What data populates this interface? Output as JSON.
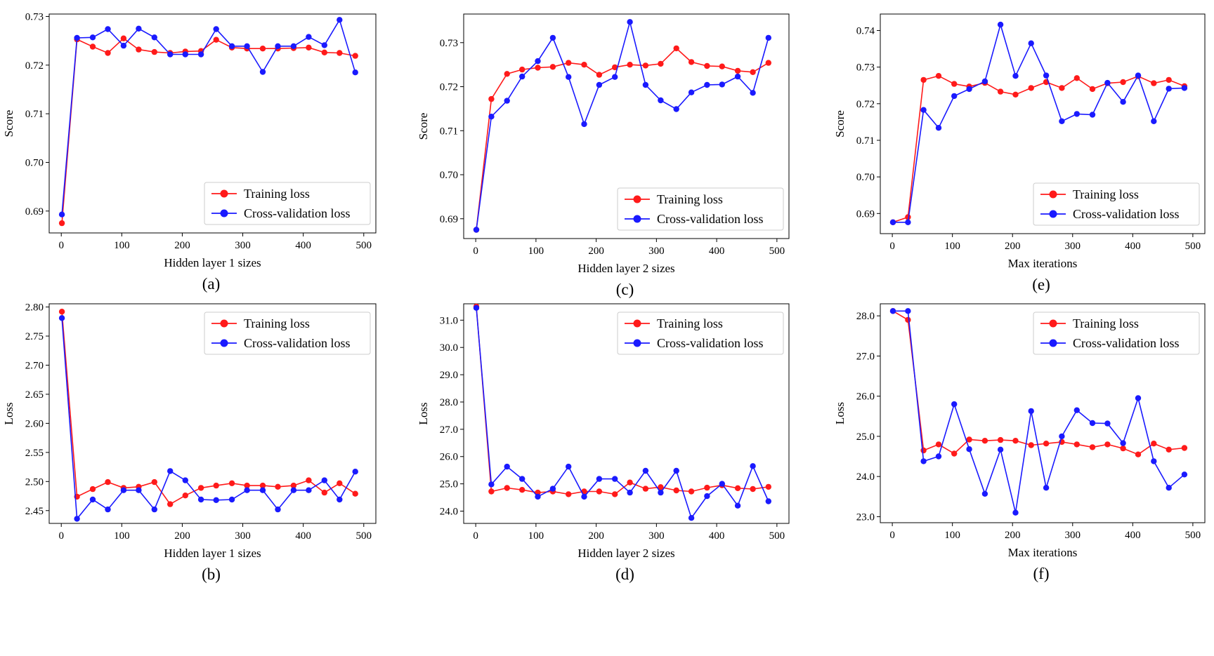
{
  "figure": {
    "legend_labels": [
      "Training loss",
      "Cross-validation loss"
    ]
  },
  "colors": {
    "training": "#ff1a1a",
    "cv": "#1a1aff",
    "axis": "#000000",
    "legend_border": "#cccccc"
  },
  "chart_data": [
    {
      "id": "a",
      "type": "line",
      "caption": "(a)",
      "xlabel": "Hidden layer 1 sizes",
      "ylabel": "Score",
      "xlim": [
        -20,
        520
      ],
      "ylim": [
        0.6855,
        0.7305
      ],
      "xticks": [
        0,
        100,
        200,
        300,
        400,
        500
      ],
      "xtick_labels": [
        "0",
        "100",
        "200",
        "300",
        "400",
        "500"
      ],
      "yticks": [
        0.69,
        0.7,
        0.71,
        0.72,
        0.73
      ],
      "ytick_labels": [
        "0.69",
        "0.70",
        "0.71",
        "0.72",
        "0.73"
      ],
      "legend": "bottom-right",
      "x": [
        1,
        26,
        52,
        77,
        103,
        128,
        154,
        180,
        205,
        231,
        256,
        282,
        307,
        333,
        358,
        384,
        409,
        435,
        460,
        486
      ],
      "series": [
        {
          "name": "Training loss",
          "values": [
            0.6875,
            0.7253,
            0.7238,
            0.7225,
            0.7255,
            0.7232,
            0.7227,
            0.7225,
            0.7228,
            0.7229,
            0.7252,
            0.7236,
            0.7234,
            0.7234,
            0.7234,
            0.7235,
            0.7236,
            0.7226,
            0.7225,
            0.7219
          ]
        },
        {
          "name": "Cross-validation loss",
          "values": [
            0.6893,
            0.7256,
            0.7257,
            0.7274,
            0.724,
            0.7275,
            0.7257,
            0.7222,
            0.7222,
            0.7222,
            0.7274,
            0.7239,
            0.7239,
            0.7186,
            0.7239,
            0.7239,
            0.7258,
            0.7241,
            0.7293,
            0.7185
          ]
        }
      ]
    },
    {
      "id": "c",
      "type": "line",
      "caption": "(c)",
      "xlabel": "Hidden layer 2 sizes",
      "ylabel": "Score",
      "xlim": [
        -20,
        520
      ],
      "ylim": [
        0.6855,
        0.7365
      ],
      "xticks": [
        0,
        100,
        200,
        300,
        400,
        500
      ],
      "xtick_labels": [
        "0",
        "100",
        "200",
        "300",
        "400",
        "500"
      ],
      "yticks": [
        0.69,
        0.7,
        0.71,
        0.72,
        0.73
      ],
      "ytick_labels": [
        "0.69",
        "0.70",
        "0.71",
        "0.72",
        "0.73"
      ],
      "legend": "bottom-right",
      "x": [
        1,
        26,
        52,
        77,
        103,
        128,
        154,
        180,
        205,
        231,
        256,
        282,
        307,
        333,
        358,
        384,
        409,
        435,
        460,
        486
      ],
      "series": [
        {
          "name": "Training loss",
          "values": [
            0.6875,
            0.7172,
            0.7229,
            0.7239,
            0.7243,
            0.7245,
            0.7254,
            0.725,
            0.7227,
            0.7244,
            0.725,
            0.7248,
            0.7252,
            0.7287,
            0.7256,
            0.7247,
            0.7246,
            0.7236,
            0.7233,
            0.7254
          ]
        },
        {
          "name": "Cross-validation loss",
          "values": [
            0.6875,
            0.7132,
            0.7168,
            0.7223,
            0.7258,
            0.7311,
            0.7222,
            0.7115,
            0.7204,
            0.7222,
            0.7347,
            0.7204,
            0.7169,
            0.7149,
            0.7187,
            0.7204,
            0.7205,
            0.7223,
            0.7186,
            0.7311
          ]
        }
      ]
    },
    {
      "id": "e",
      "type": "line",
      "caption": "(e)",
      "xlabel": "Max iterations",
      "ylabel": "Score",
      "xlim": [
        -20,
        520
      ],
      "ylim": [
        0.6845,
        0.7445
      ],
      "xticks": [
        0,
        100,
        200,
        300,
        400,
        500
      ],
      "xtick_labels": [
        "0",
        "100",
        "200",
        "300",
        "400",
        "500"
      ],
      "yticks": [
        0.69,
        0.7,
        0.71,
        0.72,
        0.73,
        0.74
      ],
      "ytick_labels": [
        "0.69",
        "0.70",
        "0.71",
        "0.72",
        "0.73",
        "0.74"
      ],
      "legend": "bottom-right",
      "x": [
        1,
        26,
        52,
        77,
        103,
        128,
        154,
        180,
        205,
        231,
        256,
        282,
        307,
        333,
        358,
        384,
        409,
        435,
        460,
        486
      ],
      "series": [
        {
          "name": "Training loss",
          "values": [
            0.6876,
            0.689,
            0.7265,
            0.7276,
            0.7254,
            0.7247,
            0.7257,
            0.7233,
            0.7225,
            0.7243,
            0.7259,
            0.7243,
            0.727,
            0.724,
            0.7256,
            0.7259,
            0.7275,
            0.7256,
            0.7265,
            0.7248
          ]
        },
        {
          "name": "Cross-validation loss",
          "values": [
            0.6876,
            0.6876,
            0.7183,
            0.7134,
            0.7221,
            0.724,
            0.7261,
            0.7416,
            0.7276,
            0.7365,
            0.7277,
            0.7152,
            0.7172,
            0.717,
            0.7257,
            0.7205,
            0.7277,
            0.7152,
            0.7241,
            0.7243
          ]
        }
      ]
    },
    {
      "id": "b",
      "type": "line",
      "caption": "(b)",
      "xlabel": "Hidden layer 1 sizes",
      "ylabel": "Loss",
      "xlim": [
        -20,
        520
      ],
      "ylim": [
        2.428,
        2.8055
      ],
      "xticks": [
        0,
        100,
        200,
        300,
        400,
        500
      ],
      "xtick_labels": [
        "0",
        "100",
        "200",
        "300",
        "400",
        "500"
      ],
      "yticks": [
        2.45,
        2.5,
        2.55,
        2.6,
        2.65,
        2.7,
        2.75,
        2.8
      ],
      "ytick_labels": [
        "2.45",
        "2.50",
        "2.55",
        "2.60",
        "2.65",
        "2.70",
        "2.75",
        "2.80"
      ],
      "legend": "top-right",
      "x": [
        1,
        26,
        52,
        77,
        103,
        128,
        154,
        180,
        205,
        231,
        256,
        282,
        307,
        333,
        358,
        384,
        409,
        435,
        460,
        486
      ],
      "series": [
        {
          "name": "Training loss",
          "values": [
            2.792,
            2.474,
            2.487,
            2.499,
            2.489,
            2.491,
            2.499,
            2.461,
            2.476,
            2.489,
            2.493,
            2.497,
            2.493,
            2.493,
            2.491,
            2.493,
            2.502,
            2.481,
            2.497,
            2.479
          ]
        },
        {
          "name": "Cross-validation loss",
          "values": [
            2.781,
            2.436,
            2.469,
            2.452,
            2.485,
            2.485,
            2.452,
            2.518,
            2.502,
            2.469,
            2.468,
            2.469,
            2.485,
            2.485,
            2.452,
            2.485,
            2.485,
            2.502,
            2.469,
            2.517
          ]
        }
      ]
    },
    {
      "id": "d",
      "type": "line",
      "caption": "(d)",
      "xlabel": "Hidden layer 2 sizes",
      "ylabel": "Loss",
      "xlim": [
        -20,
        520
      ],
      "ylim": [
        23.55,
        31.6
      ],
      "xticks": [
        0,
        100,
        200,
        300,
        400,
        500
      ],
      "xtick_labels": [
        "0",
        "100",
        "200",
        "300",
        "400",
        "500"
      ],
      "yticks": [
        24,
        25,
        26,
        27,
        28,
        29,
        30,
        31
      ],
      "ytick_labels": [
        "24.0",
        "25.0",
        "26.0",
        "27.0",
        "28.0",
        "29.0",
        "30.0",
        "31.0"
      ],
      "ytick_display": [
        "24.0",
        "25.0",
        "26.0",
        "27.0",
        "28.0",
        "29.0",
        "30.0",
        "31.0"
      ],
      "legend": "top-right",
      "x": [
        1,
        26,
        52,
        77,
        103,
        128,
        154,
        180,
        205,
        231,
        256,
        282,
        307,
        333,
        358,
        384,
        409,
        435,
        460,
        486
      ],
      "series": [
        {
          "name": "Training loss",
          "values": [
            31.5,
            24.72,
            24.85,
            24.78,
            24.68,
            24.72,
            24.62,
            24.72,
            24.72,
            24.62,
            25.05,
            24.82,
            24.88,
            24.76,
            24.72,
            24.86,
            24.95,
            24.84,
            24.81,
            24.89
          ]
        },
        {
          "name": "Cross-validation loss",
          "values": [
            31.45,
            24.98,
            25.63,
            25.18,
            24.53,
            24.82,
            25.63,
            24.53,
            25.18,
            25.18,
            24.68,
            25.48,
            24.68,
            25.48,
            23.75,
            24.55,
            25.0,
            24.2,
            25.65,
            24.36
          ]
        }
      ]
    },
    {
      "id": "f",
      "type": "line",
      "caption": "(f)",
      "xlabel": "Max iterations",
      "ylabel": "Loss",
      "xlim": [
        -20,
        520
      ],
      "ylim": [
        22.85,
        28.3
      ],
      "xticks": [
        0,
        100,
        200,
        300,
        400,
        500
      ],
      "xtick_labels": [
        "0",
        "100",
        "200",
        "300",
        "400",
        "500"
      ],
      "yticks": [
        23,
        24,
        25,
        26,
        27,
        28
      ],
      "ytick_labels": [
        "23.0",
        "24.0",
        "25.0",
        "26.0",
        "27.0",
        "28.0"
      ],
      "legend": "top-right",
      "x": [
        1,
        26,
        52,
        77,
        103,
        128,
        154,
        180,
        205,
        231,
        256,
        282,
        307,
        333,
        358,
        384,
        409,
        435,
        460,
        486
      ],
      "series": [
        {
          "name": "Training loss",
          "values": [
            28.12,
            27.9,
            24.65,
            24.8,
            24.57,
            24.92,
            24.89,
            24.91,
            24.89,
            24.78,
            24.82,
            24.86,
            24.8,
            24.73,
            24.8,
            24.7,
            24.55,
            24.82,
            24.67,
            24.71
          ]
        },
        {
          "name": "Cross-validation loss",
          "values": [
            28.12,
            28.12,
            24.38,
            24.5,
            25.8,
            24.68,
            23.57,
            24.67,
            23.1,
            25.63,
            23.72,
            25.0,
            25.65,
            25.33,
            25.32,
            24.83,
            25.95,
            24.38,
            23.72,
            24.05
          ]
        }
      ]
    }
  ]
}
